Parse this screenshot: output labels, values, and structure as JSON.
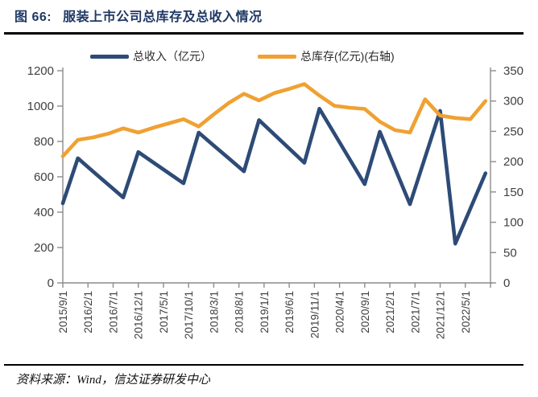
{
  "header": {
    "figure_label": "图 66:",
    "title": "服装上市公司总库存及总收入情况"
  },
  "legend": [
    {
      "label": "总收入（亿元）",
      "color": "#2D4B76"
    },
    {
      "label": "总库存(亿元)(右轴)",
      "color": "#F0A132"
    }
  ],
  "footer": {
    "source_label": "资料来源：",
    "source_text": "Wind，信达证券研发中心"
  },
  "colors": {
    "revenue_blue": "#2D4B76",
    "inventory_orange": "#F0A132",
    "title_navy": "#1F3864",
    "axis_line_gray": "#8C8C8C",
    "axis_label_gray": "#404040"
  },
  "chart_data": {
    "type": "line",
    "title": "服装上市公司总库存及总收入情况",
    "x_dates": [
      "2015/9/1",
      "2015/12/1",
      "2016/3/1",
      "2016/6/1",
      "2016/9/1",
      "2016/12/1",
      "2017/3/1",
      "2017/6/1",
      "2017/9/1",
      "2017/12/1",
      "2018/3/1",
      "2018/6/1",
      "2018/9/1",
      "2018/12/1",
      "2019/3/1",
      "2019/6/1",
      "2019/9/1",
      "2019/12/1",
      "2020/3/1",
      "2020/6/1",
      "2020/9/1",
      "2020/12/1",
      "2021/3/1",
      "2021/6/1",
      "2021/9/1",
      "2021/12/1",
      "2022/3/1",
      "2022/6/1",
      "2022/9/1"
    ],
    "x_months": [
      0,
      3,
      6,
      9,
      12,
      15,
      18,
      21,
      24,
      27,
      30,
      33,
      36,
      39,
      42,
      45,
      48,
      51,
      54,
      57,
      60,
      63,
      66,
      69,
      72,
      75,
      78,
      81,
      84
    ],
    "series": [
      {
        "name": "总收入（亿元）",
        "axis": "left",
        "color": "#2D4B76",
        "values": [
          450,
          705,
          630,
          557,
          483,
          740,
          681,
          622,
          563,
          850,
          777,
          704,
          631,
          921,
          840,
          760,
          679,
          985,
          843,
          700,
          558,
          855,
          650,
          445,
          710,
          973,
          222,
          420,
          620
        ]
      },
      {
        "name": "总库存(亿元)(右轴)",
        "axis": "right",
        "color": "#F0A132",
        "values": [
          209,
          236,
          240,
          246,
          255,
          248,
          256,
          263,
          270,
          258,
          278,
          297,
          312,
          301,
          313,
          320,
          328,
          309,
          292,
          289,
          287,
          266,
          252,
          248,
          303,
          276,
          272,
          270,
          300
        ]
      }
    ],
    "left_axis": {
      "min": 0,
      "max": 1200,
      "step": 200,
      "ticks": [
        0,
        200,
        400,
        600,
        800,
        1000,
        1200
      ]
    },
    "right_axis": {
      "min": 0,
      "max": 350,
      "step": 50,
      "ticks": [
        0,
        50,
        100,
        150,
        200,
        250,
        300,
        350
      ]
    },
    "x_tick_labels": [
      "2015/9/1",
      "2016/2/1",
      "2016/7/1",
      "2016/12/1",
      "2017/5/1",
      "2017/10/1",
      "2018/3/1",
      "2018/8/1",
      "2019/1/1",
      "2019/6/1",
      "2019/11/1",
      "2020/4/1",
      "2020/9/1",
      "2021/2/1",
      "2021/7/1",
      "2021/12/1",
      "2022/5/1"
    ],
    "x_tick_months": [
      0,
      5,
      10,
      15,
      20,
      25,
      30,
      35,
      40,
      45,
      50,
      55,
      60,
      65,
      70,
      75,
      80
    ],
    "x_axis_total_months": 85,
    "grid": false,
    "legend_position": "top"
  }
}
